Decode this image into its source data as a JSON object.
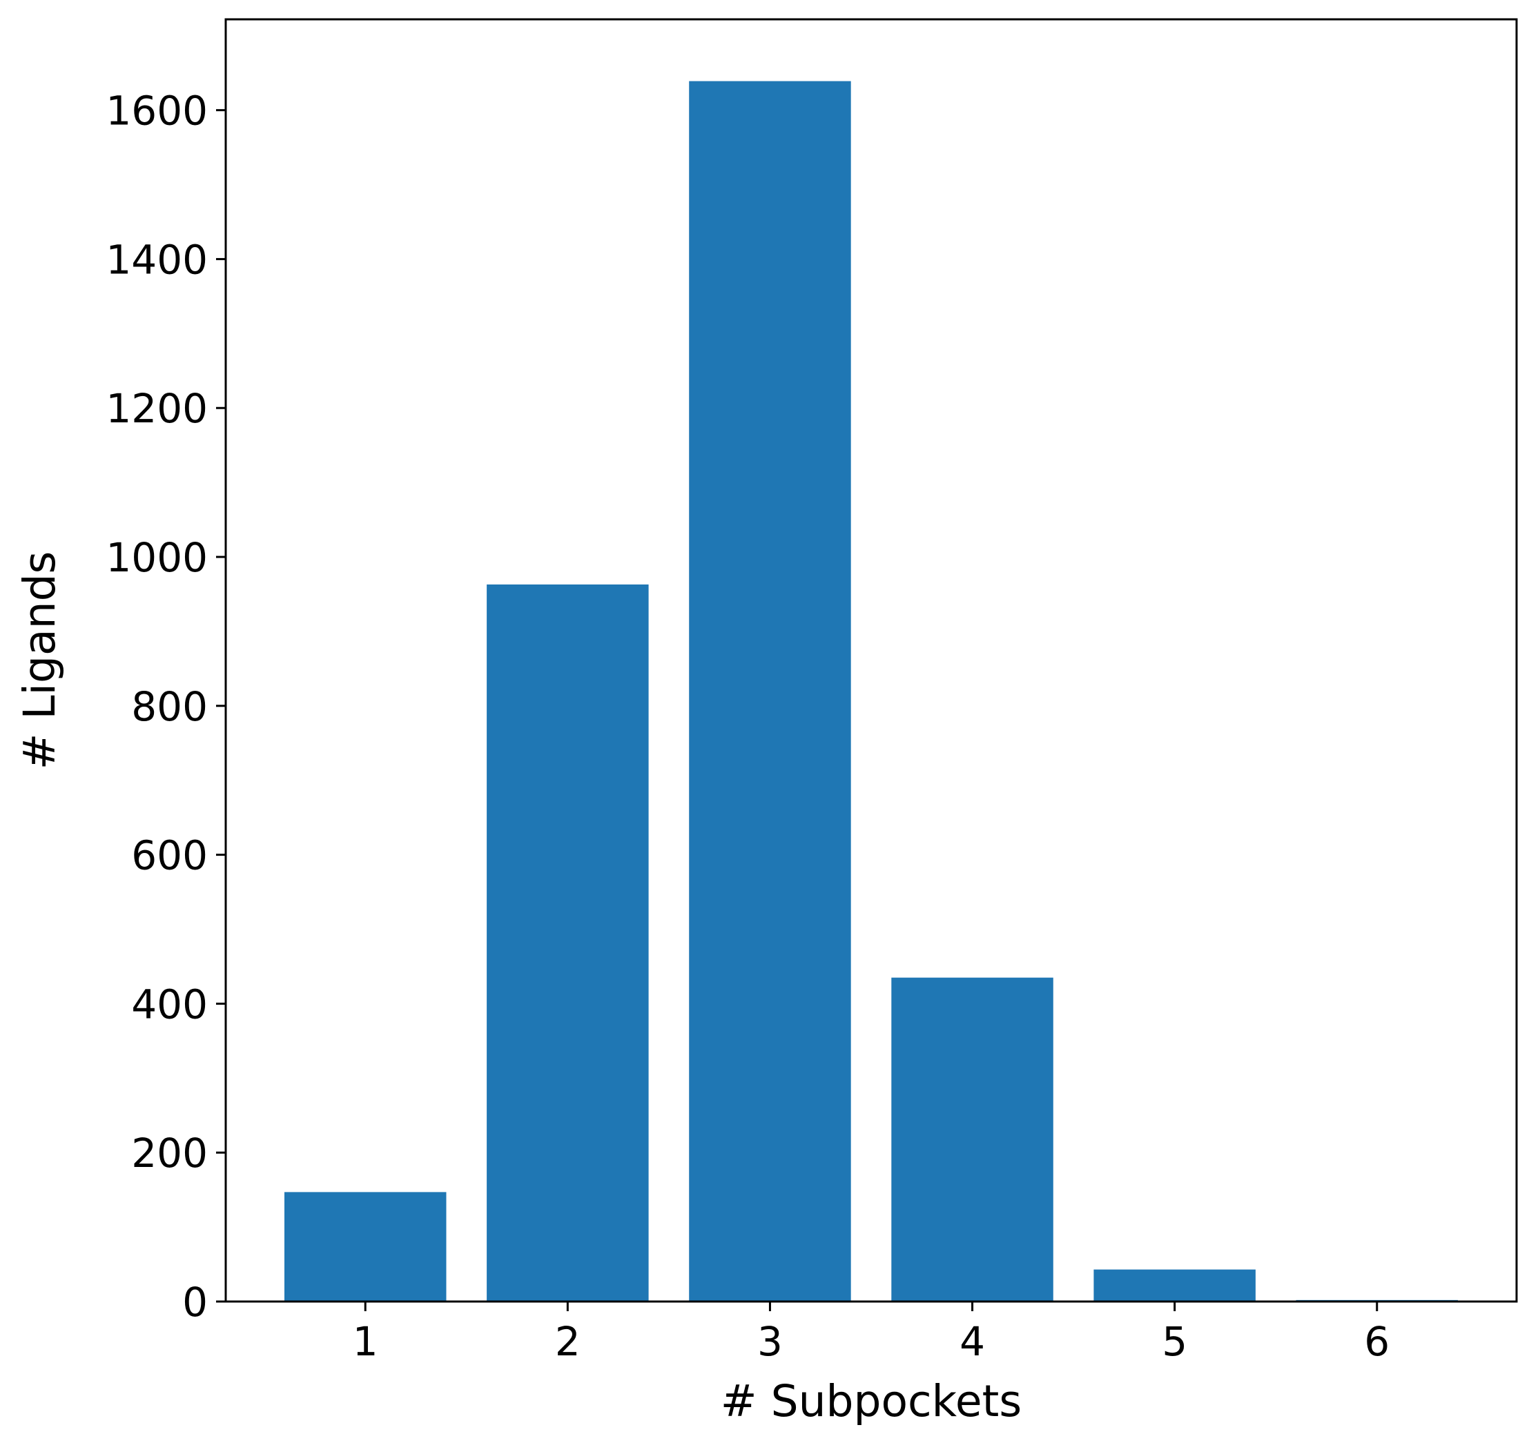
{
  "chart_data": {
    "type": "bar",
    "categories": [
      "1",
      "2",
      "3",
      "4",
      "5",
      "6"
    ],
    "values": [
      147,
      963,
      1639,
      435,
      43,
      2
    ],
    "xlabel": "# Subpockets",
    "ylabel": "# Ligands",
    "ylim": [
      0,
      1722
    ],
    "yticks": [
      0,
      200,
      400,
      600,
      800,
      1000,
      1200,
      1400,
      1600
    ],
    "xlim": [
      0.31,
      6.69
    ],
    "grid": false,
    "legend": "none",
    "bar_color": "#1f77b4"
  }
}
